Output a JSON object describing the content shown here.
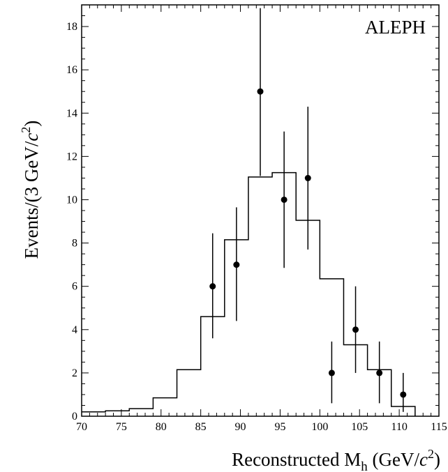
{
  "chart_data": {
    "type": "histogram_with_errorbars",
    "experiment_label": "ALEPH",
    "xlabel": {
      "prefix": "Reconstructed M",
      "sub": "h",
      "unit_open": " (GeV/",
      "unit_var": "c",
      "unit_pow": "2",
      "unit_close": ")"
    },
    "ylabel": {
      "prefix": "Events/(3 GeV/",
      "unit_var": "c",
      "unit_pow": "2",
      "unit_close": ")"
    },
    "xlim": [
      70,
      115
    ],
    "ylim": [
      0,
      19
    ],
    "x_ticks": [
      70,
      75,
      80,
      85,
      90,
      95,
      100,
      105,
      110,
      115
    ],
    "y_ticks": [
      0,
      2,
      4,
      6,
      8,
      10,
      12,
      14,
      16,
      18
    ],
    "x_tick_labels": [
      "70",
      "75",
      "80",
      "85",
      "90",
      "95",
      "100",
      "105",
      "110",
      "115"
    ],
    "y_tick_labels": [
      "0",
      "2",
      "4",
      "6",
      "8",
      "10",
      "12",
      "14",
      "16",
      "18"
    ],
    "x_minor_step": 1,
    "y_minor_step": 0.5,
    "histogram": {
      "name": "",
      "bin_edges": [
        70,
        73,
        76,
        79,
        82,
        85,
        88,
        91,
        94,
        97,
        100,
        103,
        106,
        109,
        112
      ],
      "values": [
        0.2,
        0.25,
        0.35,
        0.85,
        2.15,
        4.6,
        8.15,
        11.05,
        11.25,
        9.05,
        6.35,
        3.3,
        2.15,
        0.45
      ]
    },
    "data_points": {
      "name": "",
      "x": [
        86.5,
        89.5,
        92.5,
        95.5,
        98.5,
        101.5,
        104.5,
        107.5,
        110.5
      ],
      "y": [
        6,
        7,
        15,
        10,
        11,
        2,
        4,
        2,
        1
      ],
      "err_low": [
        2.4,
        2.6,
        3.9,
        3.15,
        3.3,
        1.4,
        2.0,
        1.4,
        0.8
      ],
      "err_high": [
        2.45,
        2.65,
        3.85,
        3.15,
        3.3,
        1.45,
        2.0,
        1.45,
        1.0
      ]
    }
  }
}
